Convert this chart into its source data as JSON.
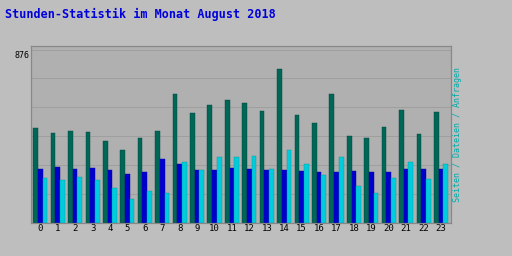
{
  "title": "Stunden-Statistik im Monat August 2018",
  "title_color": "#0000dd",
  "ylabel": "Seiten / Dateien / Anfragen",
  "ylabel_color": "#00aaaa",
  "background_color": "#bebebe",
  "plot_bg_color": "#b0b0b0",
  "hours": [
    0,
    1,
    2,
    3,
    4,
    5,
    6,
    7,
    8,
    9,
    10,
    11,
    12,
    13,
    14,
    15,
    16,
    17,
    18,
    19,
    20,
    21,
    22,
    23
  ],
  "green_vals": [
    480,
    455,
    465,
    460,
    415,
    370,
    430,
    465,
    650,
    555,
    595,
    620,
    605,
    565,
    780,
    545,
    505,
    650,
    440,
    430,
    485,
    570,
    450,
    560
  ],
  "blue_vals": [
    270,
    280,
    270,
    275,
    265,
    245,
    255,
    320,
    295,
    265,
    265,
    275,
    270,
    265,
    265,
    260,
    255,
    255,
    260,
    255,
    255,
    270,
    270,
    270
  ],
  "cyan_vals": [
    225,
    215,
    230,
    215,
    175,
    118,
    158,
    148,
    305,
    265,
    330,
    330,
    335,
    270,
    370,
    295,
    240,
    330,
    185,
    150,
    225,
    305,
    220,
    295
  ],
  "green_color": "#006655",
  "blue_color": "#0000cc",
  "cyan_color": "#00ccdd",
  "grid_color": "#999999",
  "bar_width": 0.27,
  "ytick_val": 876,
  "ymax": 876
}
